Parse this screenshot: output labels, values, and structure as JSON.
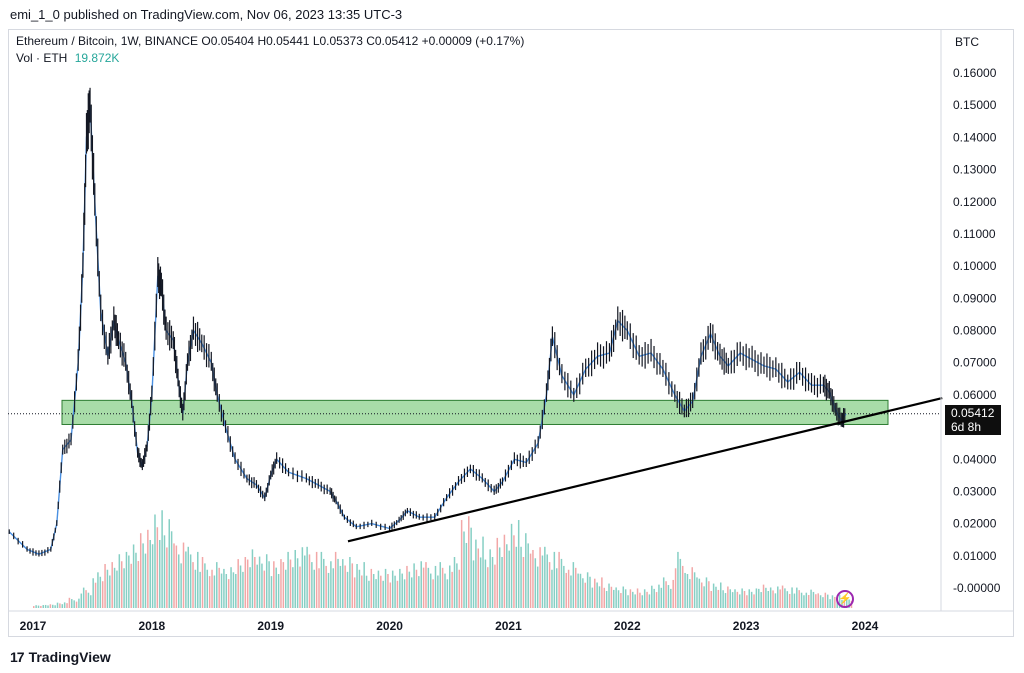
{
  "publish_line": "emi_1_0 published on TradingView.com, Nov 06, 2023 13:35 UTC-3",
  "legend": {
    "symbol_line": "Ethereum / Bitcoin, 1W, BINANCE  O0.05404  H0.05441  L0.05373  C0.05412  +0.00009 (+0.17%)",
    "vol_label": "Vol · ETH",
    "vol_value": "19.872K"
  },
  "currency": "BTC",
  "price_label": "0.05412",
  "countdown_label": "6d 8h",
  "brand": "TradingView",
  "colors": {
    "up": "#131722",
    "price_line": "#4a90e2",
    "zone_fill": "#8bd08b",
    "vol_up": "#86cfc4",
    "vol_down": "#f2a7a7",
    "trendline": "#000000",
    "event_icon": "#9c27b0"
  },
  "icons": {
    "event": "lightning-icon",
    "logo": "tradingview-logo-icon"
  },
  "chart_data": {
    "type": "line",
    "x_axis_labels": [
      "2017",
      "2018",
      "2019",
      "2020",
      "2021",
      "2022",
      "2023",
      "2024"
    ],
    "y_axis_labels": [
      "0.16000",
      "0.15000",
      "0.14000",
      "0.13000",
      "0.12000",
      "0.11000",
      "0.10000",
      "0.09000",
      "0.08000",
      "0.07000",
      "0.06000",
      "0.04000",
      "0.03000",
      "0.02000",
      "0.01000",
      "-0.00000"
    ],
    "ylim": [
      -0.006,
      0.166
    ],
    "series": [
      {
        "points": [
          [
            2016.8,
            0.0175
          ],
          [
            2016.95,
            0.012
          ],
          [
            2017.05,
            0.0105
          ],
          [
            2017.15,
            0.012
          ],
          [
            2017.2,
            0.02
          ],
          [
            2017.25,
            0.043
          ],
          [
            2017.32,
            0.046
          ],
          [
            2017.38,
            0.07
          ],
          [
            2017.42,
            0.1
          ],
          [
            2017.45,
            0.14
          ],
          [
            2017.48,
            0.15
          ],
          [
            2017.52,
            0.12
          ],
          [
            2017.57,
            0.086
          ],
          [
            2017.63,
            0.072
          ],
          [
            2017.68,
            0.083
          ],
          [
            2017.72,
            0.077
          ],
          [
            2017.78,
            0.07
          ],
          [
            2017.83,
            0.058
          ],
          [
            2017.88,
            0.042
          ],
          [
            2017.92,
            0.038
          ],
          [
            2017.96,
            0.044
          ],
          [
            2018.0,
            0.06
          ],
          [
            2018.05,
            0.097
          ],
          [
            2018.08,
            0.094
          ],
          [
            2018.12,
            0.08
          ],
          [
            2018.18,
            0.077
          ],
          [
            2018.22,
            0.065
          ],
          [
            2018.26,
            0.054
          ],
          [
            2018.3,
            0.07
          ],
          [
            2018.35,
            0.08
          ],
          [
            2018.42,
            0.076
          ],
          [
            2018.5,
            0.07
          ],
          [
            2018.55,
            0.06
          ],
          [
            2018.62,
            0.05
          ],
          [
            2018.7,
            0.04
          ],
          [
            2018.8,
            0.034
          ],
          [
            2018.88,
            0.032
          ],
          [
            2018.95,
            0.028
          ],
          [
            2019.0,
            0.035
          ],
          [
            2019.05,
            0.04
          ],
          [
            2019.15,
            0.036
          ],
          [
            2019.3,
            0.034
          ],
          [
            2019.4,
            0.032
          ],
          [
            2019.5,
            0.03
          ],
          [
            2019.55,
            0.027
          ],
          [
            2019.62,
            0.022
          ],
          [
            2019.72,
            0.019
          ],
          [
            2019.85,
            0.02
          ],
          [
            2020.0,
            0.0185
          ],
          [
            2020.08,
            0.021
          ],
          [
            2020.15,
            0.024
          ],
          [
            2020.25,
            0.022
          ],
          [
            2020.38,
            0.022
          ],
          [
            2020.48,
            0.028
          ],
          [
            2020.58,
            0.033
          ],
          [
            2020.68,
            0.037
          ],
          [
            2020.78,
            0.034
          ],
          [
            2020.88,
            0.03
          ],
          [
            2020.95,
            0.033
          ],
          [
            2021.05,
            0.04
          ],
          [
            2021.15,
            0.039
          ],
          [
            2021.25,
            0.045
          ],
          [
            2021.32,
            0.06
          ],
          [
            2021.37,
            0.078
          ],
          [
            2021.45,
            0.066
          ],
          [
            2021.55,
            0.06
          ],
          [
            2021.65,
            0.068
          ],
          [
            2021.75,
            0.072
          ],
          [
            2021.85,
            0.073
          ],
          [
            2021.92,
            0.083
          ],
          [
            2022.0,
            0.08
          ],
          [
            2022.1,
            0.072
          ],
          [
            2022.2,
            0.073
          ],
          [
            2022.3,
            0.068
          ],
          [
            2022.4,
            0.06
          ],
          [
            2022.48,
            0.055
          ],
          [
            2022.55,
            0.058
          ],
          [
            2022.62,
            0.072
          ],
          [
            2022.7,
            0.079
          ],
          [
            2022.78,
            0.072
          ],
          [
            2022.85,
            0.069
          ],
          [
            2022.95,
            0.073
          ],
          [
            2023.05,
            0.071
          ],
          [
            2023.15,
            0.069
          ],
          [
            2023.25,
            0.068
          ],
          [
            2023.35,
            0.064
          ],
          [
            2023.45,
            0.067
          ],
          [
            2023.55,
            0.063
          ],
          [
            2023.65,
            0.063
          ],
          [
            2023.7,
            0.061
          ],
          [
            2023.75,
            0.0555
          ],
          [
            2023.8,
            0.052
          ],
          [
            2023.84,
            0.0541
          ]
        ]
      },
      {
        "type": "bar",
        "values_x": [
          2017.0,
          2017.1,
          2017.2,
          2017.3,
          2017.4,
          2017.5,
          2017.6,
          2017.7,
          2017.8,
          2017.9,
          2018.0,
          2018.1,
          2018.2,
          2018.3,
          2018.4,
          2018.5,
          2018.6,
          2018.7,
          2018.8,
          2018.9,
          2019.0,
          2019.1,
          2019.2,
          2019.3,
          2019.4,
          2019.5,
          2019.6,
          2019.7,
          2019.8,
          2019.9,
          2020.0,
          2020.1,
          2020.2,
          2020.3,
          2020.4,
          2020.5,
          2020.6,
          2020.7,
          2020.8,
          2020.9,
          2021.0,
          2021.1,
          2021.2,
          2021.3,
          2021.4,
          2021.5,
          2021.6,
          2021.7,
          2021.8,
          2021.9,
          2022.0,
          2022.1,
          2022.2,
          2022.3,
          2022.4,
          2022.5,
          2022.6,
          2022.7,
          2022.8,
          2022.9,
          2023.0,
          2023.1,
          2023.2,
          2023.3,
          2023.4,
          2023.5,
          2023.6,
          2023.7,
          2023.8
        ],
        "volumes": [
          0.3,
          0.4,
          0.6,
          1.0,
          2.0,
          3.5,
          4.5,
          5.5,
          6.5,
          8.0,
          10.0,
          9.5,
          7.0,
          6.0,
          5.0,
          4.5,
          4.0,
          5.0,
          6.0,
          5.5,
          5.0,
          6.0,
          6.5,
          6.0,
          5.5,
          5.5,
          5.0,
          4.5,
          4.0,
          4.0,
          4.0,
          4.5,
          5.0,
          4.5,
          4.5,
          5.0,
          9.0,
          7.0,
          6.0,
          7.5,
          9.0,
          8.0,
          6.5,
          6.0,
          5.5,
          4.5,
          3.5,
          3.0,
          2.5,
          2.2,
          2.0,
          2.0,
          2.5,
          3.0,
          5.5,
          4.0,
          3.0,
          2.5,
          2.2,
          2.0,
          2.0,
          2.5,
          2.3,
          2.2,
          2.0,
          1.8,
          1.5,
          1.3,
          1.0
        ]
      }
    ],
    "support_zone": [
      0.0508,
      0.0583
    ],
    "trendline": [
      [
        2019.65,
        0.0145
      ],
      [
        2024.65,
        0.059
      ]
    ],
    "current_price": 0.05412
  }
}
